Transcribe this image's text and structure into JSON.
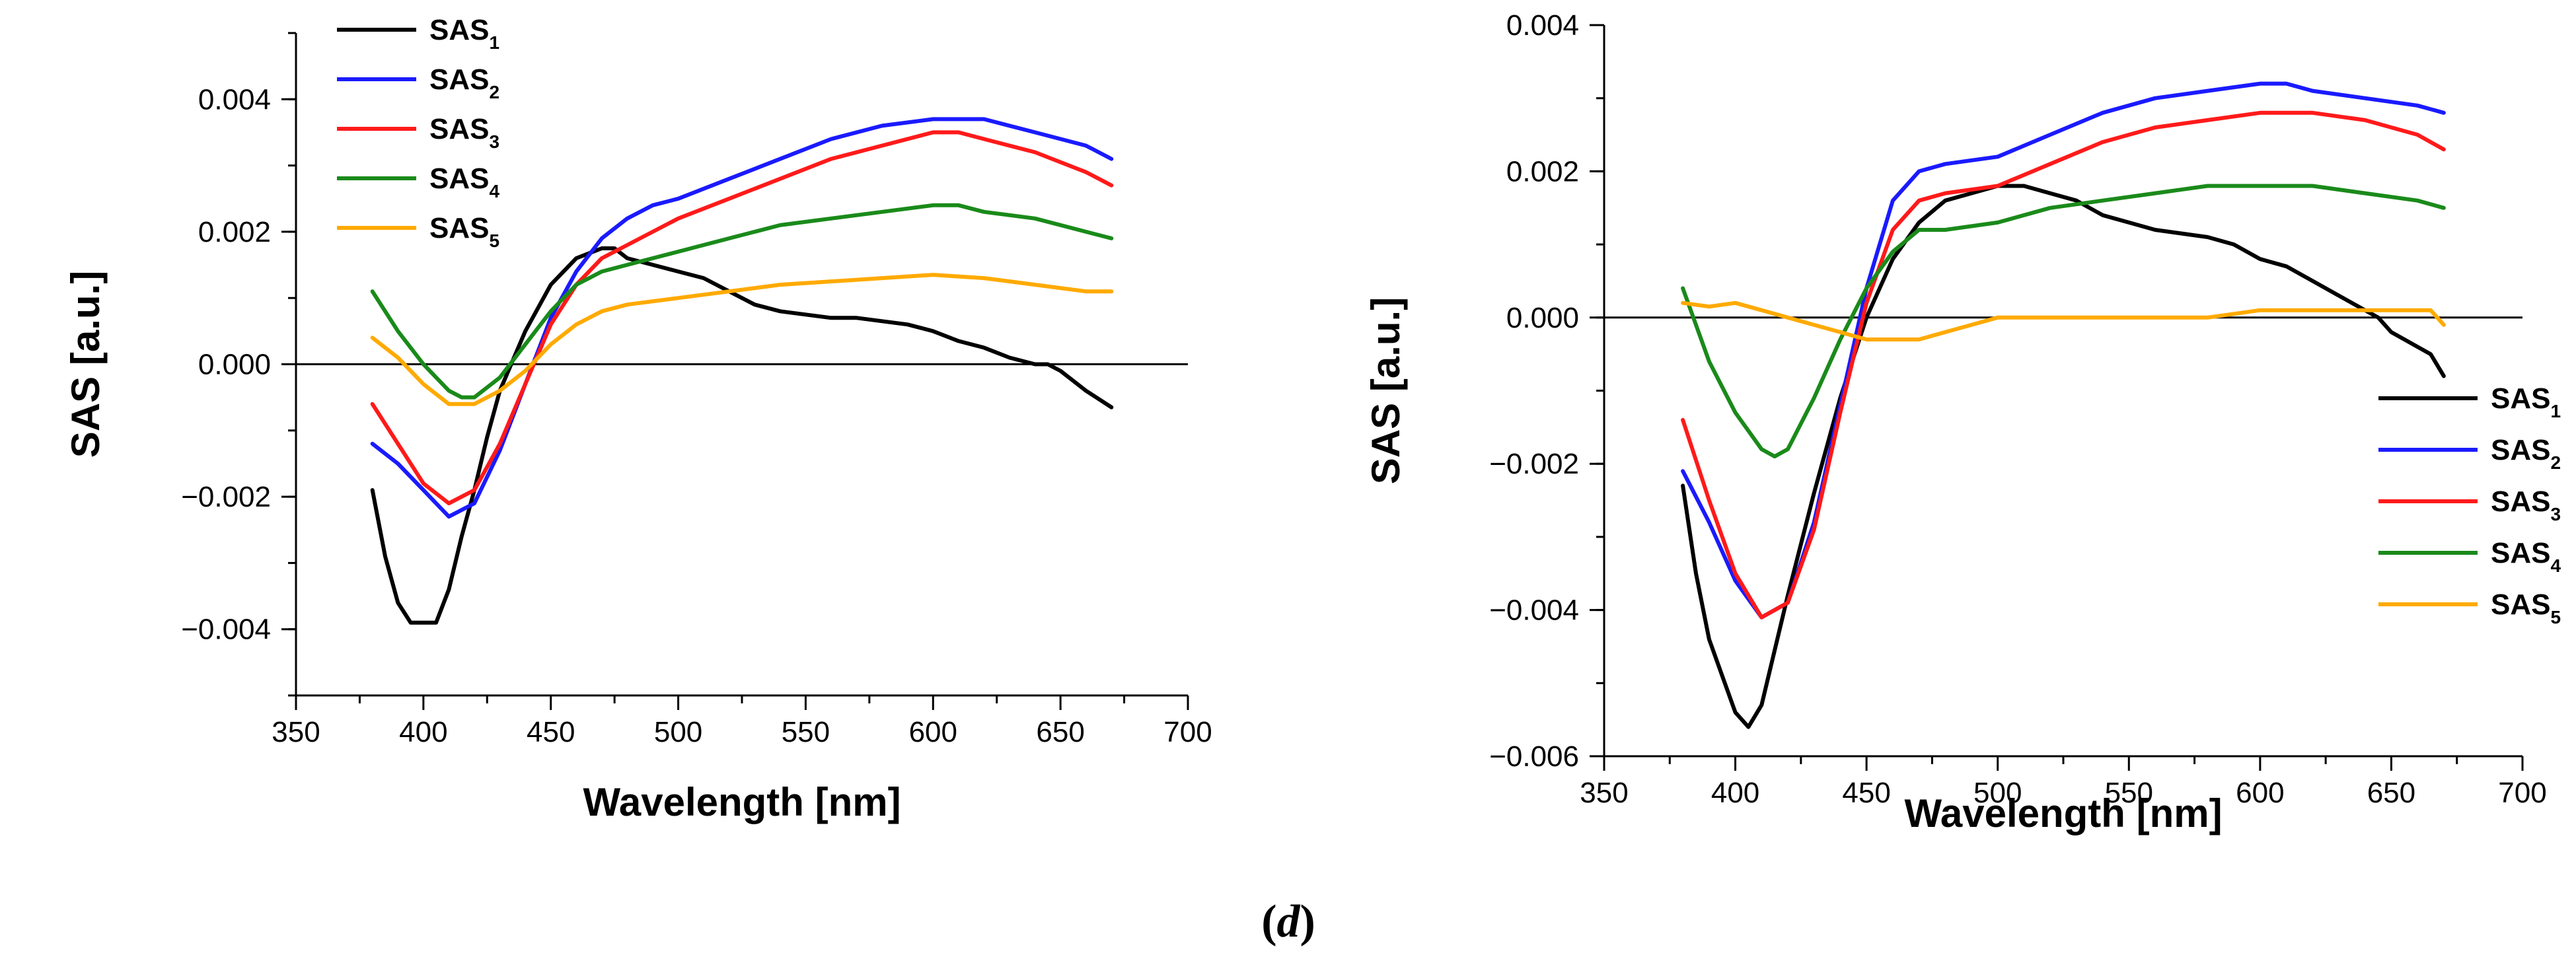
{
  "caption": {
    "open": "(",
    "letter": "d",
    "close": ")"
  },
  "colors": {
    "SAS1": "#000000",
    "SAS2": "#1a1aff",
    "SAS3": "#ff1a1a",
    "SAS4": "#1a8a1a",
    "SAS5": "#ffaa00"
  },
  "chart_data": [
    {
      "type": "line",
      "title": "",
      "xlabel": "Wavelength [nm]",
      "ylabel": "SAS [a.u.]",
      "xlim": [
        350,
        700
      ],
      "ylim": [
        -0.005,
        0.005
      ],
      "xticks": [
        350,
        400,
        450,
        500,
        550,
        600,
        650,
        700
      ],
      "xtick_labels": [
        "350",
        "400",
        "450",
        "500",
        "550",
        "600",
        "650",
        "700"
      ],
      "yticks": [
        -0.004,
        -0.002,
        0.0,
        0.002,
        0.004
      ],
      "ytick_labels": [
        "−0.004",
        "−0.002",
        "0.000",
        "0.002",
        "0.004"
      ],
      "zero_line": true,
      "legend_position": "top-left",
      "series": [
        {
          "key": "SAS1",
          "name": "SAS",
          "sub": "1",
          "x": [
            380,
            385,
            390,
            395,
            400,
            405,
            410,
            415,
            420,
            425,
            430,
            440,
            450,
            460,
            470,
            475,
            480,
            490,
            500,
            510,
            520,
            530,
            540,
            550,
            560,
            570,
            580,
            590,
            600,
            610,
            620,
            630,
            640,
            645,
            650,
            660,
            670
          ],
          "y": [
            -0.0019,
            -0.0029,
            -0.0036,
            -0.0039,
            -0.0039,
            -0.0039,
            -0.0034,
            -0.0026,
            -0.0019,
            -0.0011,
            -0.0004,
            0.0005,
            0.0012,
            0.0016,
            0.00175,
            0.00175,
            0.0016,
            0.0015,
            0.0014,
            0.0013,
            0.0011,
            0.0009,
            0.0008,
            0.00075,
            0.0007,
            0.0007,
            0.00065,
            0.0006,
            0.0005,
            0.00035,
            0.00025,
            0.0001,
            0.0,
            0.0,
            -0.0001,
            -0.0004,
            -0.00065
          ]
        },
        {
          "key": "SAS2",
          "name": "SAS",
          "sub": "2",
          "x": [
            380,
            390,
            400,
            410,
            420,
            430,
            440,
            450,
            460,
            470,
            480,
            490,
            500,
            520,
            540,
            560,
            580,
            600,
            610,
            620,
            640,
            660,
            670
          ],
          "y": [
            -0.0012,
            -0.0015,
            -0.0019,
            -0.0023,
            -0.0021,
            -0.0013,
            -0.0003,
            0.0007,
            0.0014,
            0.0019,
            0.0022,
            0.0024,
            0.0025,
            0.0028,
            0.0031,
            0.0034,
            0.0036,
            0.0037,
            0.0037,
            0.0037,
            0.0035,
            0.0033,
            0.0031
          ]
        },
        {
          "key": "SAS3",
          "name": "SAS",
          "sub": "3",
          "x": [
            380,
            390,
            400,
            410,
            420,
            430,
            440,
            450,
            460,
            470,
            480,
            490,
            500,
            520,
            540,
            560,
            580,
            600,
            610,
            620,
            640,
            660,
            670
          ],
          "y": [
            -0.0006,
            -0.0012,
            -0.0018,
            -0.0021,
            -0.0019,
            -0.0012,
            -0.0003,
            0.0006,
            0.0012,
            0.0016,
            0.0018,
            0.002,
            0.0022,
            0.0025,
            0.0028,
            0.0031,
            0.0033,
            0.0035,
            0.0035,
            0.0034,
            0.0032,
            0.0029,
            0.0027
          ]
        },
        {
          "key": "SAS4",
          "name": "SAS",
          "sub": "4",
          "x": [
            380,
            390,
            400,
            410,
            415,
            420,
            430,
            440,
            450,
            460,
            470,
            480,
            500,
            520,
            540,
            560,
            580,
            600,
            610,
            620,
            640,
            660,
            670
          ],
          "y": [
            0.0011,
            0.0005,
            0.0,
            -0.0004,
            -0.0005,
            -0.0005,
            -0.0002,
            0.0003,
            0.0008,
            0.0012,
            0.0014,
            0.0015,
            0.0017,
            0.0019,
            0.0021,
            0.0022,
            0.0023,
            0.0024,
            0.0024,
            0.0023,
            0.0022,
            0.002,
            0.0019
          ]
        },
        {
          "key": "SAS5",
          "name": "SAS",
          "sub": "5",
          "x": [
            380,
            390,
            400,
            410,
            420,
            430,
            440,
            450,
            460,
            470,
            480,
            500,
            520,
            540,
            560,
            580,
            600,
            620,
            640,
            660,
            670
          ],
          "y": [
            0.0004,
            0.0001,
            -0.0003,
            -0.0006,
            -0.0006,
            -0.0004,
            -0.0001,
            0.0003,
            0.0006,
            0.0008,
            0.0009,
            0.001,
            0.0011,
            0.0012,
            0.00125,
            0.0013,
            0.00135,
            0.0013,
            0.0012,
            0.0011,
            0.0011
          ]
        }
      ]
    },
    {
      "type": "line",
      "title": "",
      "xlabel": "Wavelength [nm]",
      "ylabel": "SAS [a.u.]",
      "xlim": [
        350,
        700
      ],
      "ylim": [
        -0.006,
        0.004
      ],
      "xticks": [
        350,
        400,
        450,
        500,
        550,
        600,
        650,
        700
      ],
      "xtick_labels": [
        "350",
        "400",
        "450",
        "500",
        "550",
        "600",
        "650",
        "700"
      ],
      "yticks": [
        -0.006,
        -0.004,
        -0.002,
        0.0,
        0.002,
        0.004
      ],
      "ytick_labels": [
        "−0.006",
        "−0.004",
        "−0.002",
        "0.000",
        "0.002",
        "0.004"
      ],
      "zero_line": true,
      "legend_position": "bottom-right",
      "series": [
        {
          "key": "SAS1",
          "name": "SAS",
          "sub": "1",
          "x": [
            380,
            385,
            390,
            395,
            400,
            405,
            410,
            420,
            430,
            440,
            450,
            460,
            470,
            480,
            490,
            500,
            510,
            520,
            530,
            540,
            550,
            560,
            570,
            580,
            590,
            600,
            610,
            620,
            630,
            640,
            645,
            650,
            655,
            660,
            665,
            670
          ],
          "y": [
            -0.0023,
            -0.0035,
            -0.0044,
            -0.0049,
            -0.0054,
            -0.0056,
            -0.0053,
            -0.0038,
            -0.0024,
            -0.0011,
            0.0,
            0.0008,
            0.0013,
            0.0016,
            0.0017,
            0.0018,
            0.0018,
            0.0017,
            0.0016,
            0.0014,
            0.0013,
            0.0012,
            0.00115,
            0.0011,
            0.001,
            0.0008,
            0.0007,
            0.0005,
            0.0003,
            0.0001,
            0.0,
            -0.0002,
            -0.0003,
            -0.0004,
            -0.0005,
            -0.0008
          ]
        },
        {
          "key": "SAS2",
          "name": "SAS",
          "sub": "2",
          "x": [
            380,
            390,
            400,
            410,
            420,
            430,
            440,
            450,
            460,
            470,
            480,
            500,
            520,
            540,
            560,
            580,
            600,
            610,
            620,
            640,
            660,
            670
          ],
          "y": [
            -0.0021,
            -0.0028,
            -0.0036,
            -0.0041,
            -0.0039,
            -0.0028,
            -0.0012,
            0.0004,
            0.0016,
            0.002,
            0.0021,
            0.0022,
            0.0025,
            0.0028,
            0.003,
            0.0031,
            0.0032,
            0.0032,
            0.0031,
            0.003,
            0.0029,
            0.0028
          ]
        },
        {
          "key": "SAS3",
          "name": "SAS",
          "sub": "3",
          "x": [
            380,
            390,
            400,
            410,
            420,
            430,
            440,
            450,
            460,
            470,
            480,
            500,
            520,
            540,
            560,
            580,
            600,
            610,
            620,
            640,
            660,
            670
          ],
          "y": [
            -0.0014,
            -0.0025,
            -0.0035,
            -0.0041,
            -0.0039,
            -0.0029,
            -0.0013,
            0.0002,
            0.0012,
            0.0016,
            0.0017,
            0.0018,
            0.0021,
            0.0024,
            0.0026,
            0.0027,
            0.0028,
            0.0028,
            0.0028,
            0.0027,
            0.0025,
            0.0023
          ]
        },
        {
          "key": "SAS4",
          "name": "SAS",
          "sub": "4",
          "x": [
            380,
            390,
            400,
            410,
            415,
            420,
            430,
            440,
            450,
            460,
            470,
            480,
            500,
            520,
            540,
            560,
            580,
            600,
            620,
            640,
            660,
            670
          ],
          "y": [
            0.0004,
            -0.0006,
            -0.0013,
            -0.0018,
            -0.0019,
            -0.0018,
            -0.0011,
            -0.0003,
            0.0004,
            0.0009,
            0.0012,
            0.0012,
            0.0013,
            0.0015,
            0.0016,
            0.0017,
            0.0018,
            0.0018,
            0.0018,
            0.0017,
            0.0016,
            0.0015
          ]
        },
        {
          "key": "SAS5",
          "name": "SAS",
          "sub": "5",
          "x": [
            380,
            390,
            400,
            410,
            420,
            430,
            440,
            450,
            460,
            470,
            480,
            490,
            500,
            520,
            540,
            560,
            580,
            600,
            620,
            640,
            650,
            660,
            665,
            670
          ],
          "y": [
            0.0002,
            0.00015,
            0.0002,
            0.0001,
            0.0,
            -0.0001,
            -0.0002,
            -0.0003,
            -0.0003,
            -0.0003,
            -0.0002,
            -0.0001,
            0.0,
            0.0,
            0.0,
            0.0,
            0.0,
            0.0001,
            0.0001,
            0.0001,
            0.0001,
            0.0001,
            0.0001,
            -0.0001
          ]
        }
      ]
    }
  ]
}
